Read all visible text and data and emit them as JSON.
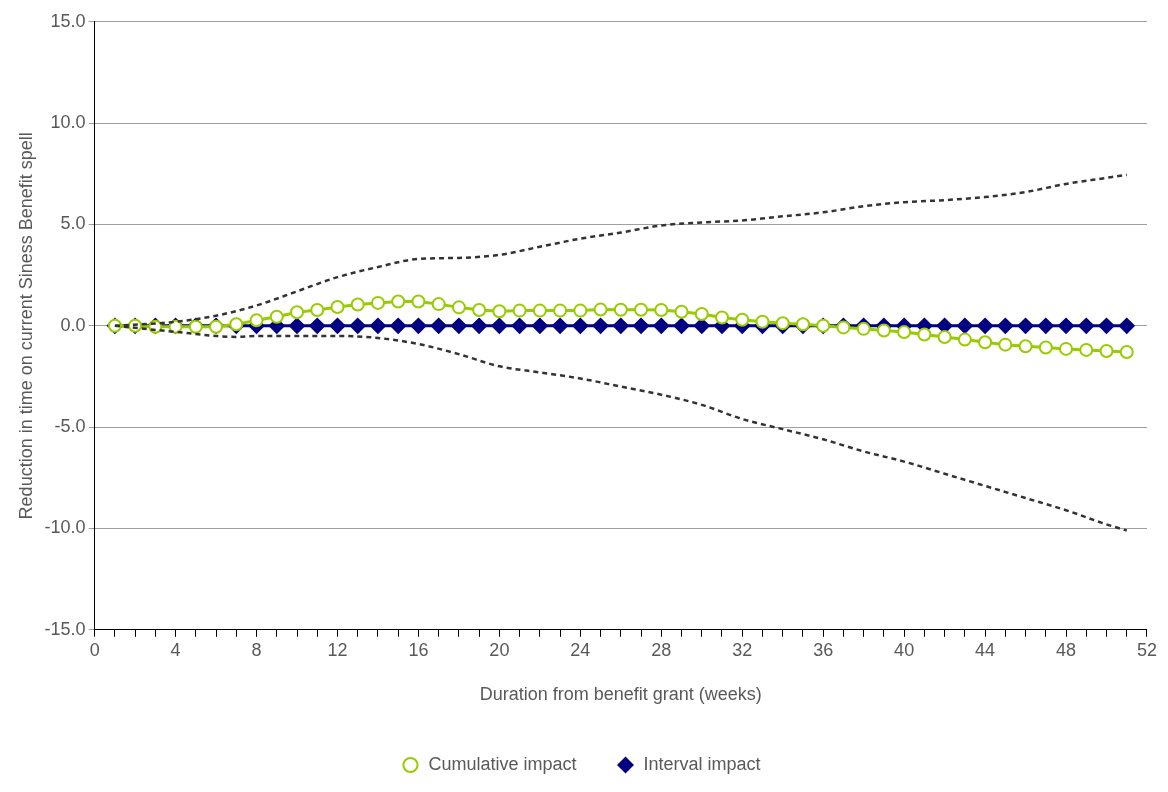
{
  "chart_data": {
    "type": "line",
    "xlabel": "Duration from benefit grant (weeks)",
    "ylabel": "Reduction in time on current Siness Benefit spell",
    "x": [
      1,
      2,
      3,
      4,
      5,
      6,
      7,
      8,
      9,
      10,
      11,
      12,
      13,
      14,
      15,
      16,
      17,
      18,
      19,
      20,
      21,
      22,
      23,
      24,
      25,
      26,
      27,
      28,
      29,
      30,
      31,
      32,
      33,
      34,
      35,
      36,
      37,
      38,
      39,
      40,
      41,
      42,
      43,
      44,
      45,
      46,
      47,
      48,
      49,
      50,
      51
    ],
    "series": [
      {
        "name": "Interval impact",
        "color": "#000080",
        "marker": "diamond",
        "values": [
          0,
          0,
          0,
          0,
          0,
          0,
          0,
          0,
          0,
          0,
          0,
          0,
          0,
          0,
          0,
          0,
          0,
          0,
          0,
          0,
          0,
          0,
          0,
          0,
          0,
          0,
          0,
          0,
          0,
          0,
          0,
          0,
          0,
          0,
          0,
          0,
          0,
          0,
          0,
          0,
          0,
          0,
          0,
          0,
          0,
          0,
          0,
          0,
          0,
          0,
          0
        ]
      },
      {
        "name": "Cumulative impact",
        "color": "#99cc00",
        "marker": "circle",
        "values": [
          0,
          0,
          -0.05,
          -0.05,
          -0.05,
          -0.05,
          0.08,
          0.27,
          0.45,
          0.67,
          0.78,
          0.93,
          1.05,
          1.13,
          1.2,
          1.2,
          1.07,
          0.91,
          0.78,
          0.72,
          0.75,
          0.75,
          0.75,
          0.75,
          0.8,
          0.79,
          0.79,
          0.78,
          0.69,
          0.58,
          0.41,
          0.3,
          0.2,
          0.13,
          0.08,
          0,
          -0.08,
          -0.15,
          -0.23,
          -0.31,
          -0.43,
          -0.55,
          -0.68,
          -0.81,
          -0.93,
          -1.01,
          -1.07,
          -1.14,
          -1.19,
          -1.24,
          -1.29
        ]
      },
      {
        "color": "#333333",
        "marker": "none",
        "line_style": "dashed",
        "x": [
          1,
          4,
          6,
          8,
          10,
          12,
          14,
          16,
          18,
          20,
          22,
          24,
          26,
          28,
          30,
          32,
          34,
          36,
          38,
          40,
          42,
          44,
          46,
          48,
          50,
          51
        ],
        "values": [
          0,
          0.2,
          0.5,
          1.0,
          1.7,
          2.4,
          2.9,
          3.3,
          3.35,
          3.5,
          3.9,
          4.3,
          4.6,
          4.95,
          5.1,
          5.2,
          5.4,
          5.6,
          5.9,
          6.1,
          6.2,
          6.35,
          6.6,
          7.0,
          7.3,
          7.45
        ]
      },
      {
        "color": "#333333",
        "marker": "none",
        "line_style": "dashed",
        "x": [
          1,
          4,
          6,
          7,
          8,
          10,
          12,
          14,
          16,
          18,
          20,
          22,
          24,
          26,
          28,
          30,
          32,
          34,
          36,
          38,
          40,
          42,
          44,
          46,
          48,
          50,
          51
        ],
        "values": [
          0,
          -0.3,
          -0.5,
          -0.55,
          -0.5,
          -0.5,
          -0.5,
          -0.6,
          -0.9,
          -1.4,
          -2.0,
          -2.3,
          -2.6,
          -3.0,
          -3.4,
          -3.9,
          -4.6,
          -5.1,
          -5.6,
          -6.2,
          -6.7,
          -7.3,
          -7.9,
          -8.5,
          -9.1,
          -9.8,
          -10.1
        ]
      }
    ],
    "xlim": [
      0,
      52
    ],
    "xticks": [
      0,
      {
        "value": 1,
        "label": null
      },
      {
        "value": 2,
        "label": null
      },
      {
        "value": 3,
        "label": null
      },
      4,
      {
        "value": 5,
        "label": null
      },
      {
        "value": 6,
        "label": null
      },
      {
        "value": 7,
        "label": null
      },
      8,
      {
        "value": 9,
        "label": null
      },
      {
        "value": 10,
        "label": null
      },
      {
        "value": 11,
        "label": null
      },
      12,
      {
        "value": 13,
        "label": null
      },
      {
        "value": 14,
        "label": null
      },
      {
        "value": 15,
        "label": null
      },
      16,
      {
        "value": 17,
        "label": null
      },
      {
        "value": 18,
        "label": null
      },
      {
        "value": 19,
        "label": null
      },
      20,
      {
        "value": 21,
        "label": null
      },
      {
        "value": 22,
        "label": null
      },
      {
        "value": 23,
        "label": null
      },
      24,
      {
        "value": 25,
        "label": null
      },
      {
        "value": 26,
        "label": null
      },
      {
        "value": 27,
        "label": null
      },
      28,
      {
        "value": 29,
        "label": null
      },
      {
        "value": 30,
        "label": null
      },
      {
        "value": 31,
        "label": null
      },
      32,
      {
        "value": 33,
        "label": null
      },
      {
        "value": 34,
        "label": null
      },
      {
        "value": 35,
        "label": null
      },
      36,
      {
        "value": 37,
        "label": null
      },
      {
        "value": 38,
        "label": null
      },
      {
        "value": 39,
        "label": null
      },
      40,
      {
        "value": 41,
        "label": null
      },
      {
        "value": 42,
        "label": null
      },
      {
        "value": 43,
        "label": null
      },
      44,
      {
        "value": 45,
        "label": null
      },
      {
        "value": 46,
        "label": null
      },
      {
        "value": 47,
        "label": null
      },
      48,
      {
        "value": 49,
        "label": null
      },
      {
        "value": 50,
        "label": null
      },
      {
        "value": 51,
        "label": null
      },
      52
    ],
    "ylim": [
      -15,
      15
    ],
    "yticks": [
      {
        "value": -15,
        "label": "-15.0"
      },
      {
        "value": -10,
        "label": "-10.0"
      },
      {
        "value": -5,
        "label": "-5.0"
      },
      {
        "value": 0,
        "label": "0.0"
      },
      {
        "value": 5,
        "label": "5.0"
      },
      {
        "value": 10,
        "label": "10.0"
      },
      {
        "value": 15,
        "label": "15.0"
      }
    ],
    "grid": "y",
    "legend": "bottom"
  }
}
